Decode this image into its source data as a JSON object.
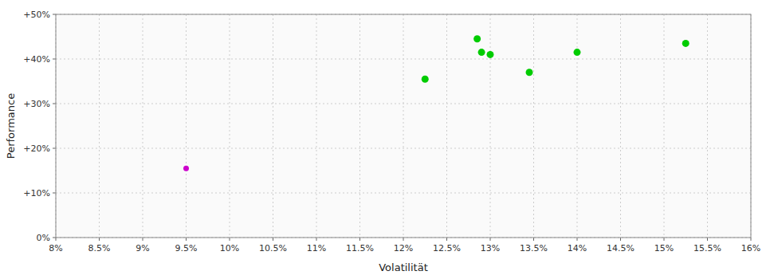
{
  "chart_data": {
    "type": "scatter",
    "xlabel": "Volatilität",
    "ylabel": "Performance",
    "xlim": [
      0.08,
      0.16
    ],
    "ylim": [
      0.0,
      0.5
    ],
    "xticks": [
      {
        "value": 0.08,
        "label": "8%"
      },
      {
        "value": 0.085,
        "label": "8.5%"
      },
      {
        "value": 0.09,
        "label": "9%"
      },
      {
        "value": 0.095,
        "label": "9.5%"
      },
      {
        "value": 0.1,
        "label": "10%"
      },
      {
        "value": 0.105,
        "label": "10.5%"
      },
      {
        "value": 0.11,
        "label": "11%"
      },
      {
        "value": 0.115,
        "label": "11.5%"
      },
      {
        "value": 0.12,
        "label": "12%"
      },
      {
        "value": 0.125,
        "label": "12.5%"
      },
      {
        "value": 0.13,
        "label": "13%"
      },
      {
        "value": 0.135,
        "label": "13.5%"
      },
      {
        "value": 0.14,
        "label": "14%"
      },
      {
        "value": 0.145,
        "label": "14.5%"
      },
      {
        "value": 0.15,
        "label": "15%"
      },
      {
        "value": 0.155,
        "label": "15.5%"
      },
      {
        "value": 0.16,
        "label": "16%"
      }
    ],
    "yticks": [
      {
        "value": 0.0,
        "label": "0%"
      },
      {
        "value": 0.1,
        "label": "+10%"
      },
      {
        "value": 0.2,
        "label": "+20%"
      },
      {
        "value": 0.3,
        "label": "+30%"
      },
      {
        "value": 0.4,
        "label": "+40%"
      },
      {
        "value": 0.5,
        "label": "+50%"
      }
    ],
    "grid": true,
    "series": [
      {
        "color": "#00cc00",
        "x": [
          0.1225,
          0.1285,
          0.129,
          0.13,
          0.1345,
          0.14,
          0.1525
        ],
        "values": [
          0.355,
          0.445,
          0.415,
          0.41,
          0.37,
          0.415,
          0.435
        ]
      },
      {
        "color": "#cc00cc",
        "x": [
          0.095
        ],
        "values": [
          0.155
        ]
      }
    ]
  }
}
